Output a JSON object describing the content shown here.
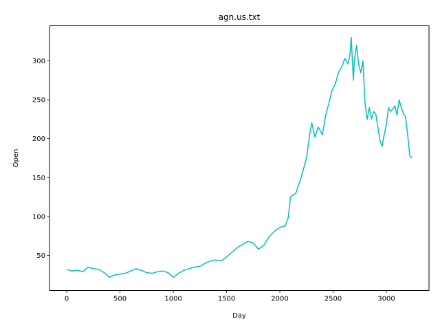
{
  "chart_data": {
    "type": "line",
    "title": "agn.us.txt",
    "xlabel": "Day",
    "ylabel": "Open",
    "xlim": [
      -162,
      3400
    ],
    "ylim": [
      5,
      345
    ],
    "xticks": [
      0,
      500,
      1000,
      1500,
      2000,
      2500,
      3000
    ],
    "yticks": [
      50,
      100,
      150,
      200,
      250,
      300
    ],
    "grid": false,
    "legend": "none",
    "series": [
      {
        "color": "#00bfbf",
        "x": [
          0,
          50,
          100,
          150,
          200,
          250,
          300,
          350,
          400,
          450,
          500,
          550,
          600,
          650,
          700,
          750,
          800,
          850,
          900,
          950,
          1000,
          1050,
          1100,
          1150,
          1200,
          1250,
          1300,
          1350,
          1400,
          1450,
          1500,
          1550,
          1600,
          1650,
          1700,
          1750,
          1800,
          1850,
          1900,
          1950,
          2000,
          2050,
          2080,
          2100,
          2150,
          2200,
          2250,
          2280,
          2300,
          2330,
          2360,
          2400,
          2430,
          2460,
          2490,
          2520,
          2550,
          2580,
          2610,
          2640,
          2660,
          2670,
          2690,
          2700,
          2720,
          2740,
          2760,
          2780,
          2800,
          2820,
          2840,
          2860,
          2880,
          2900,
          2920,
          2940,
          2960,
          2980,
          3000,
          3020,
          3040,
          3060,
          3080,
          3100,
          3120,
          3140,
          3160,
          3180,
          3200,
          3220,
          3240
        ],
        "y": [
          32,
          30,
          31,
          29,
          35,
          33,
          32,
          28,
          22,
          25,
          26,
          27,
          30,
          33,
          31,
          28,
          27,
          29,
          30,
          28,
          22,
          27,
          31,
          33,
          35,
          36,
          40,
          43,
          44,
          43,
          48,
          54,
          60,
          64,
          68,
          66,
          58,
          63,
          74,
          81,
          86,
          88,
          99,
          125,
          130,
          150,
          175,
          205,
          220,
          202,
          215,
          205,
          230,
          245,
          262,
          270,
          285,
          292,
          303,
          296,
          310,
          330,
          275,
          300,
          320,
          295,
          285,
          300,
          245,
          225,
          240,
          225,
          235,
          232,
          215,
          198,
          190,
          205,
          218,
          240,
          235,
          238,
          242,
          230,
          250,
          240,
          232,
          228,
          205,
          178,
          175
        ]
      }
    ]
  }
}
